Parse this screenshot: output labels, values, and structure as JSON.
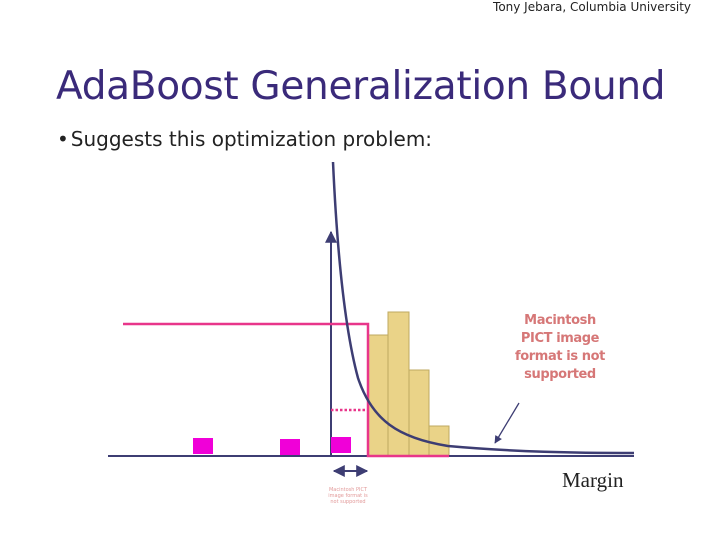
{
  "header": {
    "credit": "Tony Jebara, Columbia University"
  },
  "slide": {
    "title": "AdaBoost Generalization Bound",
    "bullet": "Suggests this optimization problem:",
    "bullet_marker": "•"
  },
  "figure": {
    "placeholder_large": "Macintosh PICT image format is not supported",
    "placeholder_small": "Macintosh PICT image format is not supported",
    "margin_label": "Margin",
    "colors": {
      "axis": "#3d3d73",
      "curve": "#3d3d73",
      "step": "#e8368a",
      "histogram_fill": "#ead388",
      "histogram_stroke": "#bfa960",
      "marker": "#f000d8",
      "placeholder_text": "#d67777"
    },
    "histogram_relative_heights": [
      0.27,
      0.31,
      0.18,
      0.06
    ]
  }
}
